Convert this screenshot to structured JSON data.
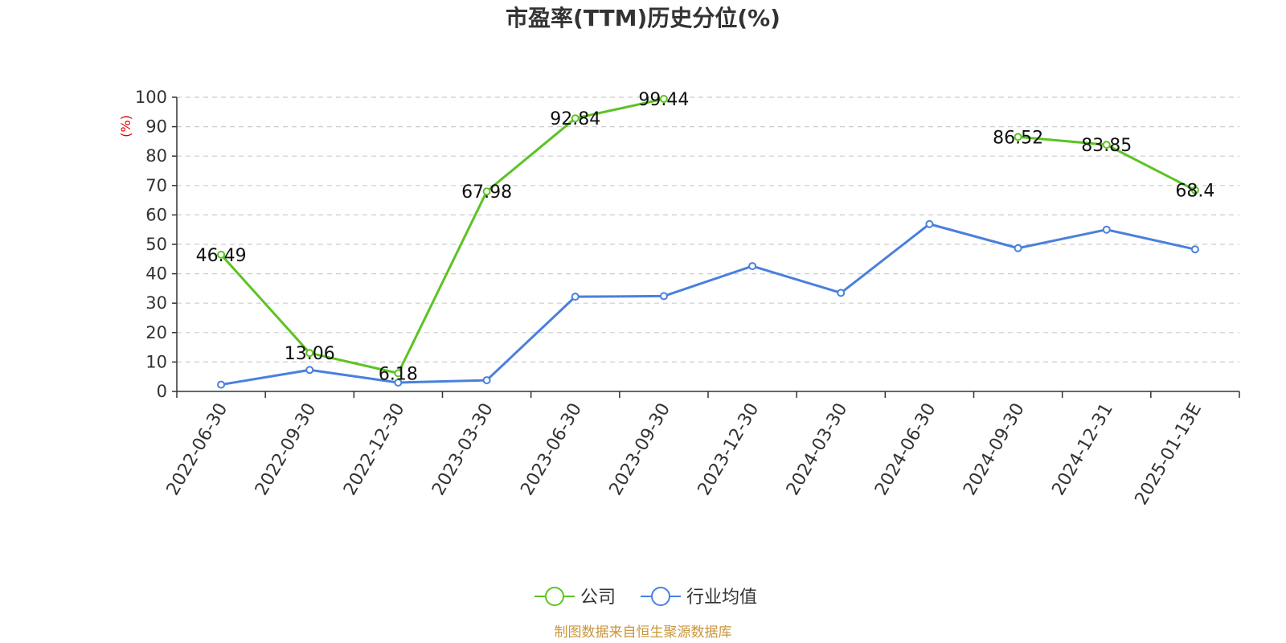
{
  "chart_data": {
    "type": "line",
    "title": "市盈率(TTM)历史分位(%)",
    "ylabel": "(%)",
    "xlabel": "",
    "ylim": [
      0,
      100
    ],
    "yticks": [
      0,
      10,
      20,
      30,
      40,
      50,
      60,
      70,
      80,
      90,
      100
    ],
    "grid": true,
    "legend_position": "bottom-center",
    "categories": [
      "2022-06-30",
      "2022-09-30",
      "2022-12-30",
      "2023-03-30",
      "2023-06-30",
      "2023-09-30",
      "2023-12-30",
      "2024-03-30",
      "2024-06-30",
      "2024-09-30",
      "2024-12-31",
      "2025-01-13E"
    ],
    "series": [
      {
        "name": "公司",
        "color": "#5cc323",
        "values": [
          46.49,
          13.06,
          6.18,
          67.98,
          92.84,
          99.44,
          null,
          null,
          null,
          86.52,
          83.85,
          68.4
        ],
        "labels": [
          "46.49",
          "13.06",
          "6.18",
          "67.98",
          "92.84",
          "99.44",
          null,
          null,
          null,
          "86.52",
          "83.85",
          "68.4"
        ]
      },
      {
        "name": "行业均值",
        "color": "#4a80dc",
        "values": [
          2.3,
          7.3,
          3.0,
          3.8,
          32.2,
          32.4,
          42.6,
          33.5,
          56.9,
          48.7,
          55.0,
          48.3
        ]
      }
    ],
    "source": "制图数据来自恒生聚源数据库"
  }
}
